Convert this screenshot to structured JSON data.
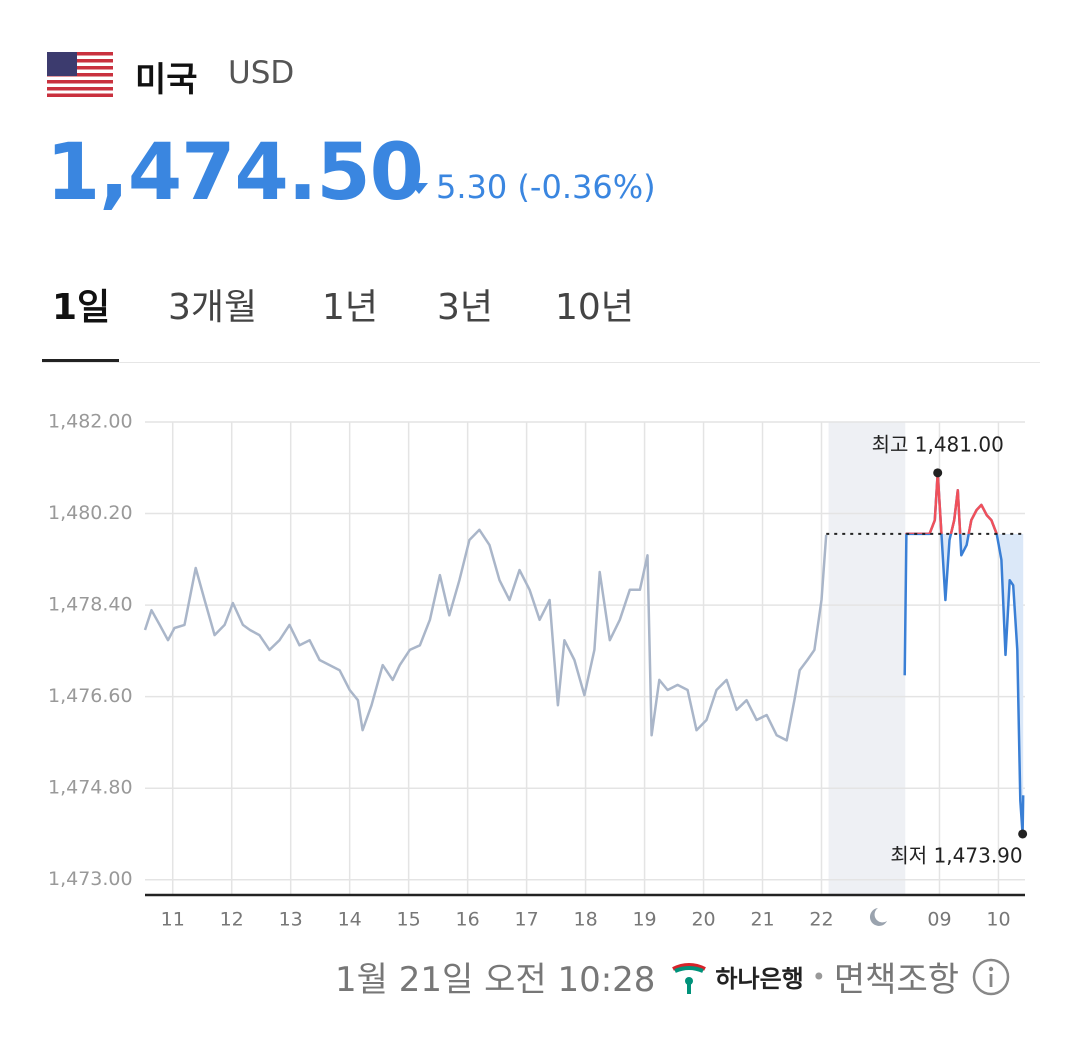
{
  "header": {
    "country": "미국",
    "currency": "USD",
    "price": "1,474.50",
    "change": "5.30",
    "change_percent": "(-0.36%)"
  },
  "tabs": [
    "1일",
    "3개월",
    "1년",
    "3년",
    "10년"
  ],
  "active_tab": 0,
  "footer": {
    "timestamp": "1월 21일 오전 10:28",
    "bank": "하나은행",
    "disclaimer": "면책조항"
  },
  "chart_data": {
    "type": "line",
    "xlim": [
      10.53,
      25.45
    ],
    "ylim": [
      1472.7,
      1482.0
    ],
    "xticks": [
      11,
      12,
      13,
      14,
      15,
      16,
      17,
      18,
      19,
      20,
      21,
      22,
      {
        "value": 24,
        "label": "09"
      },
      {
        "value": 25,
        "label": "10"
      }
    ],
    "yticks": [
      {
        "value": 1473.0,
        "label": "1,473.00"
      },
      {
        "value": 1474.8,
        "label": "1,474.80"
      },
      {
        "value": 1476.6,
        "label": "1,476.60"
      },
      {
        "value": 1478.4,
        "label": "1,478.40"
      },
      {
        "value": 1480.2,
        "label": "1,480.20"
      },
      {
        "value": 1482.0,
        "label": "1,482.00"
      }
    ],
    "grid": true,
    "reference": 1479.8,
    "shaded_range": [
      22.12,
      23.42
    ],
    "series": [
      {
        "color": "#aab6c9",
        "x": [
          10.53,
          10.64,
          10.78,
          10.92,
          11.03,
          11.2,
          11.39,
          11.54,
          11.71,
          11.88,
          12.02,
          12.19,
          12.31,
          12.47,
          12.64,
          12.81,
          12.98,
          13.15,
          13.32,
          13.49,
          13.66,
          13.83,
          14.0,
          14.14,
          14.22,
          14.37,
          14.56,
          14.73,
          14.85,
          15.02,
          15.19,
          15.36,
          15.53,
          15.69,
          15.86,
          16.03,
          16.2,
          16.37,
          16.54,
          16.71,
          16.88,
          17.05,
          17.22,
          17.39,
          17.53,
          17.64,
          17.81,
          17.98,
          18.15,
          18.24,
          18.41,
          18.58,
          18.75,
          18.92,
          19.05,
          19.12,
          19.25,
          19.39,
          19.56,
          19.73,
          19.88,
          20.05,
          20.22,
          20.39,
          20.56,
          20.73,
          20.9,
          21.07,
          21.24,
          21.41,
          21.54,
          21.63,
          21.76,
          21.88,
          22.0,
          22.08
        ],
        "values": [
          1477.91,
          1478.3,
          1478.01,
          1477.71,
          1477.95,
          1478.01,
          1479.13,
          1478.5,
          1477.81,
          1478.01,
          1478.44,
          1478.01,
          1477.91,
          1477.81,
          1477.52,
          1477.71,
          1478.01,
          1477.61,
          1477.71,
          1477.32,
          1477.22,
          1477.12,
          1476.73,
          1476.53,
          1475.94,
          1476.43,
          1477.22,
          1476.93,
          1477.22,
          1477.52,
          1477.61,
          1478.11,
          1478.99,
          1478.2,
          1478.89,
          1479.68,
          1479.88,
          1479.58,
          1478.89,
          1478.5,
          1479.09,
          1478.7,
          1478.11,
          1478.5,
          1476.43,
          1477.71,
          1477.32,
          1476.63,
          1477.52,
          1479.05,
          1477.71,
          1478.11,
          1478.7,
          1478.7,
          1479.38,
          1475.84,
          1476.93,
          1476.73,
          1476.83,
          1476.73,
          1475.94,
          1476.14,
          1476.73,
          1476.93,
          1476.34,
          1476.53,
          1476.14,
          1476.24,
          1475.84,
          1475.74,
          1476.53,
          1477.12,
          1477.32,
          1477.52,
          1478.5,
          1479.78
        ]
      },
      {
        "color": "#3a7fd5",
        "above_color": "#f0505a",
        "fill": "#dbe8f8",
        "x": [
          23.41,
          23.44,
          23.83,
          23.92,
          23.97,
          24.03,
          24.1,
          24.17,
          24.25,
          24.31,
          24.37,
          24.46,
          24.54,
          24.63,
          24.71,
          24.8,
          24.88,
          24.97,
          25.05,
          25.12,
          25.19,
          25.25,
          25.32,
          25.37,
          25.41,
          25.42
        ],
        "values": [
          1477.02,
          1479.8,
          1479.8,
          1480.07,
          1481.0,
          1479.88,
          1478.5,
          1479.68,
          1480.07,
          1480.66,
          1479.38,
          1479.58,
          1480.07,
          1480.27,
          1480.37,
          1480.17,
          1480.07,
          1479.8,
          1479.29,
          1477.42,
          1478.89,
          1478.79,
          1477.52,
          1474.56,
          1473.9,
          1474.66
        ]
      }
    ],
    "annotations": [
      {
        "x": 23.97,
        "y": 1481.0,
        "label": "최고 1,481.00"
      },
      {
        "x": 25.41,
        "y": 1473.9,
        "label": "최저 1,473.90"
      }
    ]
  }
}
